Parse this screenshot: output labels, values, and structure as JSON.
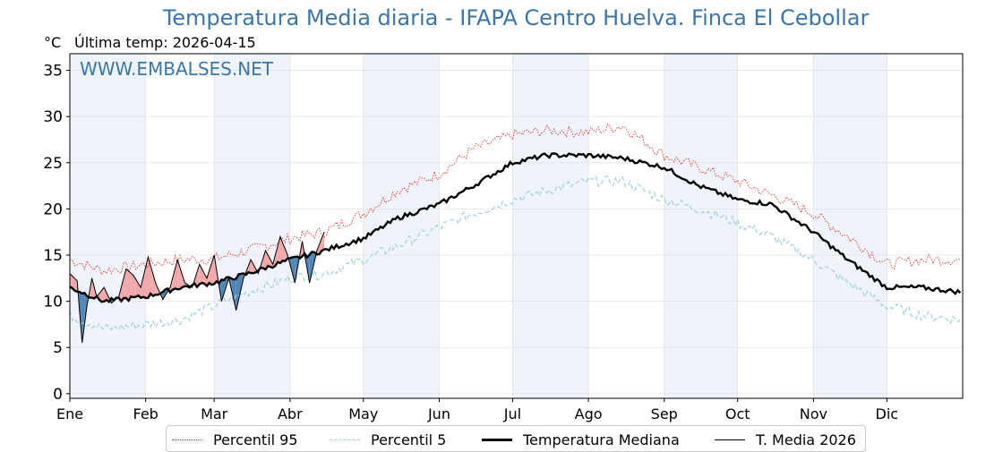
{
  "header": {
    "title": "Temperatura Media diaria - IFAPA Centro Huelva. Finca El Cebollar",
    "unit": "°C",
    "last_temp": "Última temp: 2026-04-15"
  },
  "watermark": "WWW.EMBALSES.NET",
  "legend": {
    "items": [
      {
        "label": "Percentil 95",
        "style": "dotted-red"
      },
      {
        "label": "Percentil 5",
        "style": "dashed-lightblue"
      },
      {
        "label": "Temperatura Mediana",
        "style": "thick-black"
      },
      {
        "label": "T. Media 2026",
        "style": "thin-black"
      }
    ]
  },
  "colors": {
    "p95": "#e8302a",
    "p5": "#9fcfde",
    "median": "#000000",
    "current": "#000000",
    "above_fill": "#f2a8a8",
    "below_fill": "#4f86b8",
    "month_band": "#eef4fa",
    "title": "#3a76a8"
  },
  "chart_data": {
    "type": "line",
    "title": "Temperatura Media diaria - IFAPA Centro Huelva. Finca El Cebollar",
    "ylabel": "°C",
    "xlabel": "",
    "ylim": [
      0,
      36
    ],
    "yticks": [
      0,
      5,
      10,
      15,
      20,
      25,
      30,
      35
    ],
    "x_ticks": [
      "Ene",
      "Feb",
      "Mar",
      "Abr",
      "May",
      "Jun",
      "Jul",
      "Ago",
      "Sep",
      "Oct",
      "Nov",
      "Dic"
    ],
    "grid": true,
    "legend_position": "bottom-center",
    "note": "Última temp: 2026-04-15",
    "series": [
      {
        "name": "Percentil 95",
        "x": [
          "01-01",
          "01-15",
          "02-01",
          "02-15",
          "03-01",
          "03-15",
          "04-01",
          "04-15",
          "05-01",
          "05-15",
          "06-01",
          "06-15",
          "07-01",
          "07-15",
          "08-01",
          "08-15",
          "09-01",
          "09-15",
          "10-01",
          "10-15",
          "11-01",
          "11-15",
          "12-01",
          "12-15",
          "12-31"
        ],
        "values": [
          14.5,
          13.3,
          14.0,
          14.5,
          14.6,
          15.5,
          16.8,
          17.5,
          19.5,
          22.0,
          23.8,
          26.5,
          28.0,
          28.5,
          28.3,
          29.0,
          25.8,
          24.5,
          23.0,
          21.5,
          19.5,
          17.0,
          14.0,
          14.5,
          14.5
        ]
      },
      {
        "name": "Percentil 5",
        "x": [
          "01-01",
          "01-15",
          "02-01",
          "02-15",
          "03-01",
          "03-15",
          "04-01",
          "04-15",
          "05-01",
          "05-15",
          "06-01",
          "06-15",
          "07-01",
          "07-15",
          "08-01",
          "08-15",
          "09-01",
          "09-15",
          "10-01",
          "10-15",
          "11-01",
          "11-15",
          "12-01",
          "12-15",
          "12-31"
        ],
        "values": [
          8.5,
          7.0,
          7.5,
          8.0,
          9.5,
          11.0,
          12.5,
          13.0,
          14.5,
          16.0,
          18.0,
          19.5,
          21.0,
          22.0,
          23.0,
          23.0,
          21.0,
          20.0,
          18.5,
          17.0,
          14.5,
          12.0,
          9.5,
          8.5,
          8.0
        ]
      },
      {
        "name": "Temperatura Mediana",
        "x": [
          "01-01",
          "01-15",
          "02-01",
          "02-15",
          "03-01",
          "03-15",
          "04-01",
          "04-15",
          "05-01",
          "05-15",
          "06-01",
          "06-15",
          "07-01",
          "07-15",
          "08-01",
          "08-15",
          "09-01",
          "09-15",
          "10-01",
          "10-15",
          "11-01",
          "11-15",
          "12-01",
          "12-15",
          "12-31"
        ],
        "values": [
          11.5,
          10.0,
          10.5,
          11.5,
          12.0,
          13.0,
          14.5,
          15.5,
          16.8,
          19.0,
          20.5,
          22.5,
          25.0,
          25.8,
          25.8,
          25.5,
          24.5,
          22.5,
          21.0,
          20.5,
          17.5,
          14.5,
          11.5,
          11.5,
          11.0
        ]
      },
      {
        "name": "T. Media 2026",
        "x": [
          "01-01",
          "01-04",
          "01-06",
          "01-08",
          "01-10",
          "01-12",
          "01-15",
          "01-18",
          "01-21",
          "01-24",
          "01-27",
          "01-30",
          "02-02",
          "02-05",
          "02-08",
          "02-11",
          "02-14",
          "02-17",
          "02-20",
          "02-23",
          "02-26",
          "03-01",
          "03-04",
          "03-07",
          "03-10",
          "03-13",
          "03-16",
          "03-19",
          "03-22",
          "03-25",
          "03-28",
          "03-31",
          "04-03",
          "04-06",
          "04-09",
          "04-12",
          "04-15"
        ],
        "values": [
          13.0,
          12.2,
          5.5,
          9.5,
          12.5,
          10.5,
          11.5,
          9.8,
          10.5,
          13.5,
          12.8,
          11.5,
          14.8,
          12.0,
          10.2,
          11.5,
          14.5,
          12.0,
          11.5,
          14.0,
          12.5,
          15.0,
          10.0,
          12.5,
          9.0,
          12.5,
          14.5,
          13.0,
          15.5,
          14.0,
          17.0,
          15.0,
          12.0,
          16.5,
          12.0,
          15.5,
          17.5
        ]
      }
    ]
  }
}
